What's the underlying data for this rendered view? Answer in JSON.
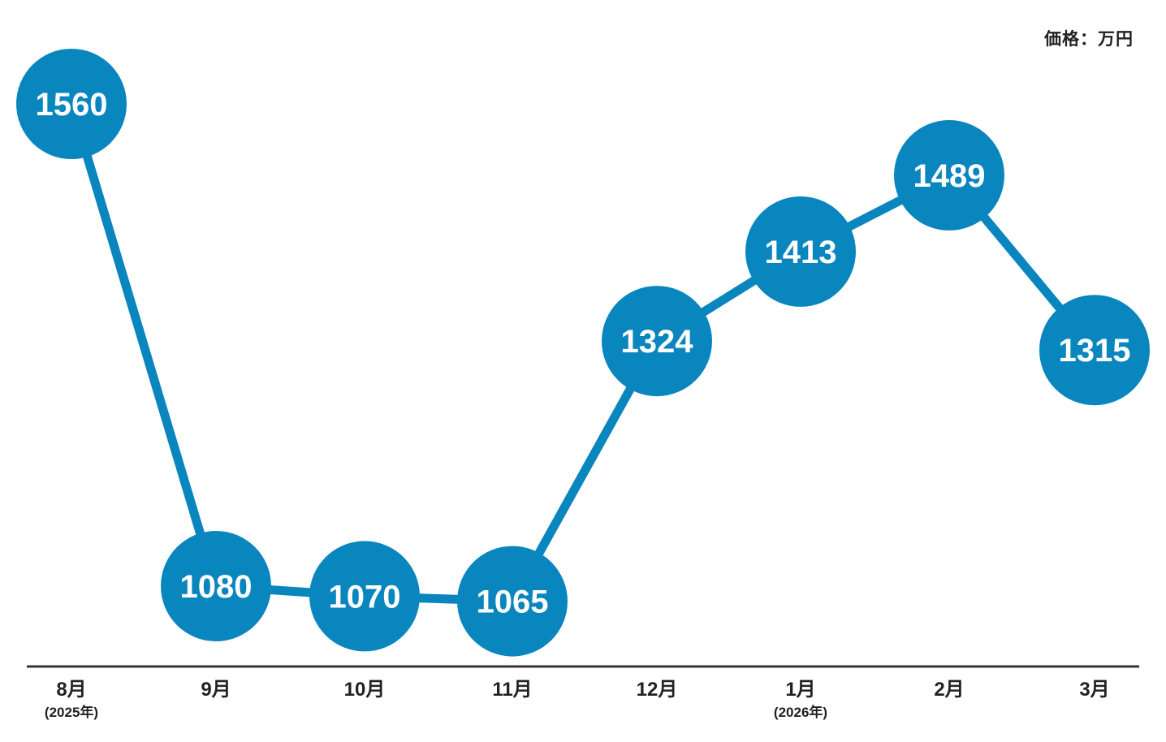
{
  "unit_label": "価格：万円",
  "colors": {
    "series": "#0a86bf",
    "axis": "#333333",
    "label_text": "#ffffff",
    "tick_text": "#222222"
  },
  "chart_data": {
    "type": "line",
    "title": "",
    "xlabel": "",
    "ylabel": "価格：万円",
    "categories": [
      "8月",
      "9月",
      "10月",
      "11月",
      "12月",
      "1月",
      "2月",
      "3月"
    ],
    "category_sublabels": [
      "(2025年)",
      "",
      "",
      "",
      "",
      "(2026年)",
      "",
      ""
    ],
    "values": [
      1560,
      1080,
      1070,
      1065,
      1324,
      1413,
      1489,
      1315
    ],
    "data_labels": [
      "1560",
      "1080",
      "1070",
      "1065",
      "1324",
      "1413",
      "1489",
      "1315"
    ],
    "grid": false,
    "legend": "none"
  }
}
